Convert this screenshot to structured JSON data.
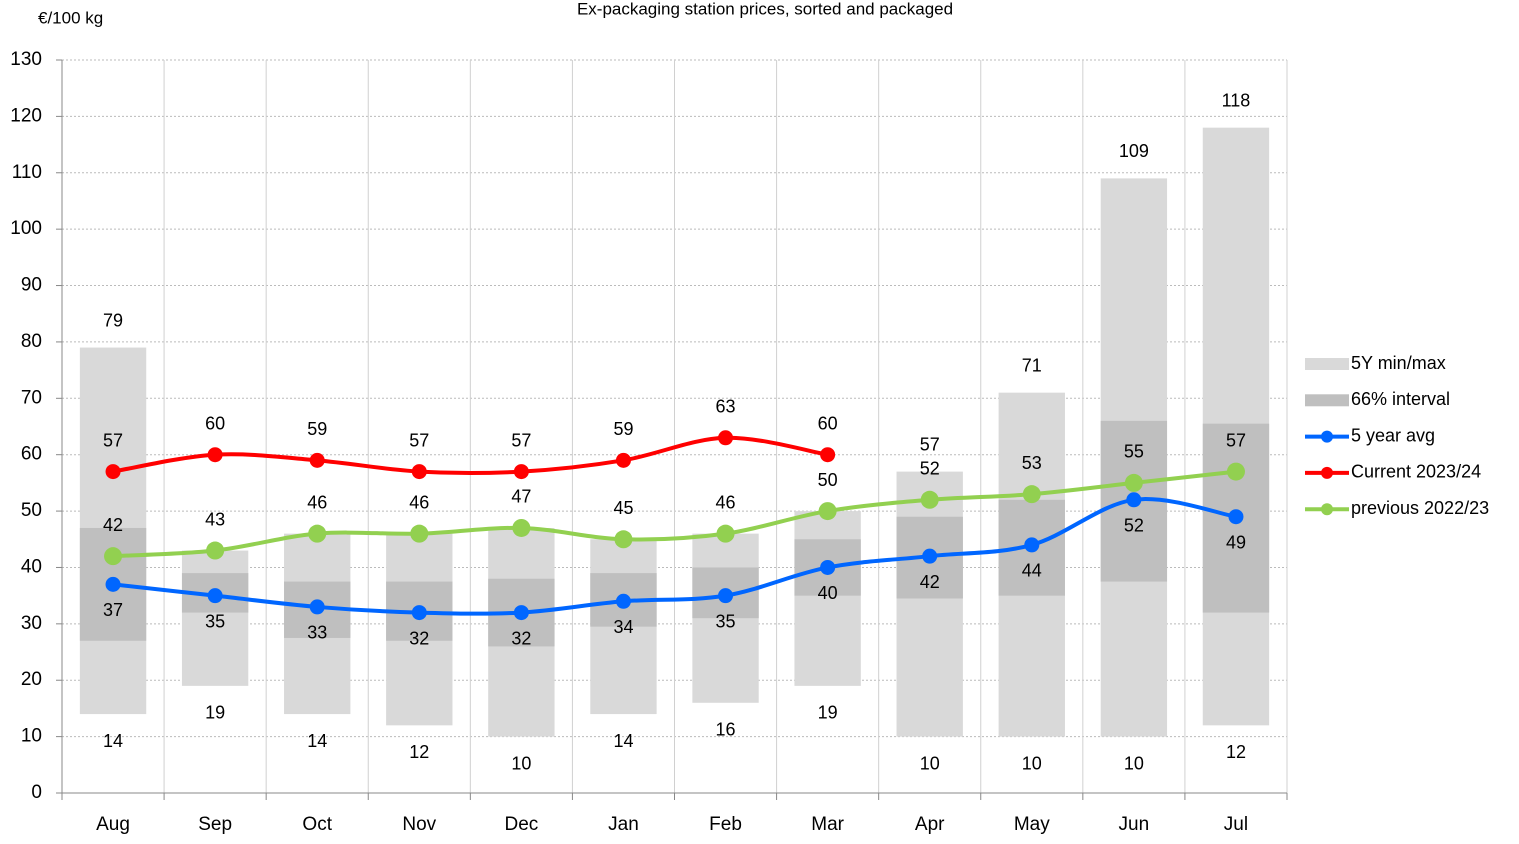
{
  "chart_data": {
    "type": "range-line",
    "title": "Ex-packaging station prices, sorted and packaged",
    "y_label": "€/100 kg",
    "categories": [
      "Aug",
      "Sep",
      "Oct",
      "Nov",
      "Dec",
      "Jan",
      "Feb",
      "Mar",
      "Apr",
      "May",
      "Jun",
      "Jul"
    ],
    "ylim": [
      0,
      130
    ],
    "yticks": [
      0,
      10,
      20,
      30,
      40,
      50,
      60,
      70,
      80,
      90,
      100,
      110,
      120,
      130
    ],
    "grid": true,
    "legend": "right",
    "series": [
      {
        "name": "5Y min/max",
        "kind": "range",
        "color": "#d9d9d9",
        "low": [
          14,
          19,
          14,
          12,
          10,
          14,
          16,
          19,
          10,
          10,
          10,
          12
        ],
        "high": [
          79,
          43,
          46,
          46,
          47,
          45,
          46,
          50,
          57,
          71,
          109,
          118
        ],
        "high_labels": [
          "79",
          null,
          null,
          null,
          null,
          null,
          null,
          null,
          "57",
          "71",
          "109",
          "118"
        ]
      },
      {
        "name": "66% interval",
        "kind": "range",
        "color": "#bfbfbf",
        "low": [
          27,
          32,
          27.5,
          27,
          26,
          29.5,
          31,
          35,
          34.5,
          35,
          37.5,
          32
        ],
        "high": [
          47,
          39,
          37.5,
          37.5,
          38,
          39,
          40,
          45,
          49,
          52,
          66,
          65.5
        ]
      },
      {
        "name": "5 year avg",
        "kind": "line",
        "color": "#0066ff",
        "values": [
          37,
          35,
          33,
          32,
          32,
          34,
          35,
          40,
          42,
          44,
          52,
          49
        ]
      },
      {
        "name": "Current 2023/24",
        "kind": "line",
        "color": "#ff0000",
        "values": [
          57,
          60,
          59,
          57,
          57,
          59,
          63,
          60,
          null,
          null,
          null,
          null
        ]
      },
      {
        "name": "previous 2022/23",
        "kind": "line",
        "color": "#92d050",
        "values": [
          42,
          43,
          46,
          46,
          47,
          45,
          46,
          50,
          52,
          53,
          55,
          57
        ]
      }
    ]
  }
}
